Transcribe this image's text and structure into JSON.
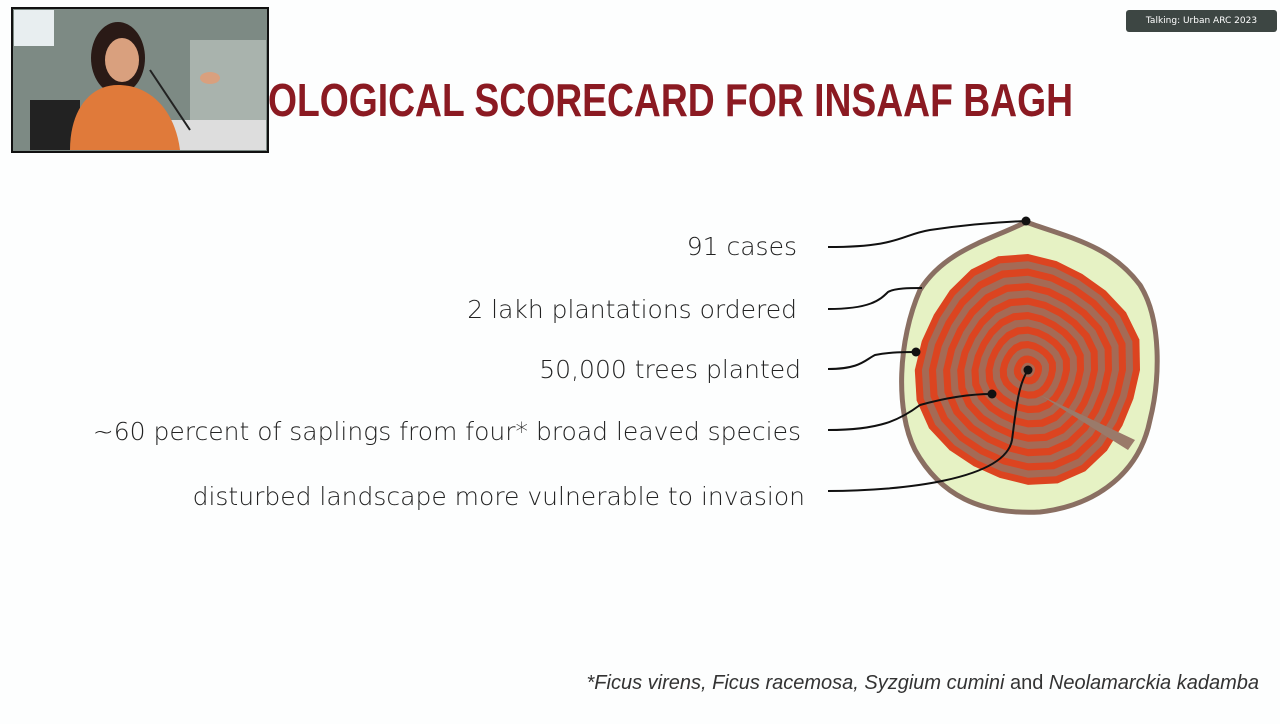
{
  "badge": "Talking: Urban ARC 2023",
  "slide": {
    "title": "OLOGICAL SCORECARD FOR INSAAF BAGH",
    "items": [
      "91 cases",
      "2 lakh plantations ordered",
      "50,000 trees planted",
      "~60 percent of saplings from four* broad leaved species",
      "disturbed landscape more vulnerable to invasion"
    ],
    "footnote": [
      "*Ficus virens, Ficus racemosa, Syzgium cumini",
      " and ",
      "Neolamarckia kadamba"
    ]
  }
}
